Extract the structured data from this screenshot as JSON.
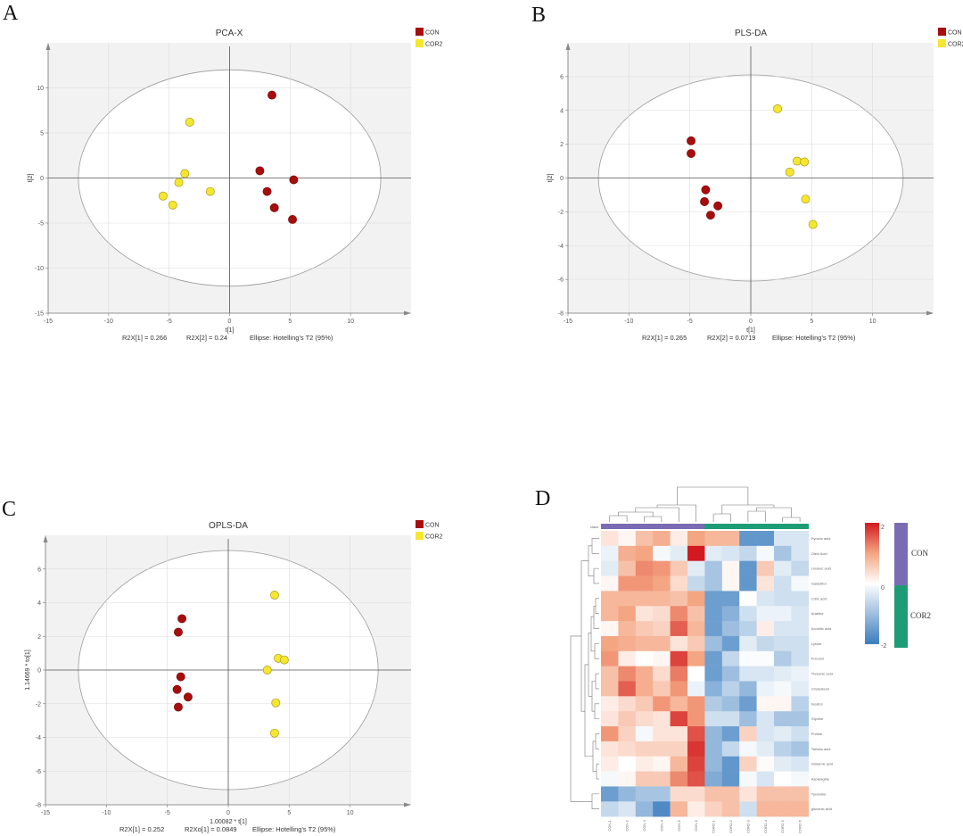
{
  "panel_labels": [
    "A",
    "B",
    "C",
    "D"
  ],
  "colors": {
    "CON": "#a80d0d",
    "COR2": "#f7e62f",
    "heat_low": "#3b7dbf",
    "heat_mid": "#ffffff",
    "heat_high": "#d2191f",
    "class_CON": "#7b6bb5",
    "class_COR2": "#1e9c75"
  },
  "chart_data": [
    {
      "type": "scatter",
      "title": "PCA-X",
      "xlabel": "t[1]",
      "ylabel": "t[2]",
      "xlim": [
        -15,
        15
      ],
      "ylim": [
        -15,
        15
      ],
      "xticks": [
        -15,
        -10,
        -5,
        0,
        5,
        10
      ],
      "yticks": [
        -15,
        -10,
        -5,
        0,
        5,
        10
      ],
      "grid": true,
      "legend": "top-right",
      "ellipse": {
        "label": "Ellipse: Hotelling's T2 (95%)",
        "rx": 12.5,
        "ry": 12
      },
      "stats": [
        "R2X[1] = 0.266",
        "R2X[2] = 0.24"
      ],
      "series": [
        {
          "name": "CON",
          "x": [
            3.5,
            2.5,
            5.3,
            3.1,
            3.7,
            5.2
          ],
          "y": [
            9.2,
            0.8,
            -0.2,
            -1.5,
            -3.3,
            -4.6
          ]
        },
        {
          "name": "COR2",
          "x": [
            -3.3,
            -3.7,
            -4.2,
            -1.6,
            -5.5,
            -4.7
          ],
          "y": [
            6.2,
            0.5,
            -0.5,
            -1.5,
            -2.0,
            -3.0
          ]
        }
      ]
    },
    {
      "type": "scatter",
      "title": "PLS-DA",
      "xlabel": "t[1]",
      "ylabel": "t[2]",
      "xlim": [
        -15,
        15
      ],
      "ylim": [
        -8,
        8
      ],
      "xticks": [
        -15,
        -10,
        -5,
        0,
        5,
        10
      ],
      "yticks": [
        -8,
        -6,
        -4,
        -2,
        0,
        2,
        4,
        6
      ],
      "grid": true,
      "legend": "top-right",
      "ellipse": {
        "label": "Ellipse: Hotelling's T2 (95%)",
        "rx": 12.5,
        "ry": 6.1
      },
      "stats": [
        "R2X[1] = 0.265",
        "R2X[2] = 0.0719"
      ],
      "series": [
        {
          "name": "CON",
          "x": [
            -4.9,
            -4.9,
            -3.7,
            -3.8,
            -2.7,
            -3.3
          ],
          "y": [
            2.2,
            1.45,
            -0.7,
            -1.4,
            -1.65,
            -2.2
          ]
        },
        {
          "name": "COR2",
          "x": [
            2.2,
            3.8,
            4.4,
            3.2,
            4.5,
            5.1
          ],
          "y": [
            4.1,
            1.0,
            0.95,
            0.35,
            -1.25,
            -2.75
          ]
        }
      ]
    },
    {
      "type": "scatter",
      "title": "OPLS-DA",
      "xlabel": "1.00082 * t[1]",
      "ylabel": "1.14669 * to[1]",
      "xlim": [
        -15,
        15
      ],
      "ylim": [
        -8,
        8
      ],
      "xticks": [
        -15,
        -10,
        -5,
        0,
        5,
        10
      ],
      "yticks": [
        -8,
        -6,
        -4,
        -2,
        0,
        2,
        4,
        6
      ],
      "grid": true,
      "legend": "top-right",
      "ellipse": {
        "label": "Ellipse: Hotelling's T2 (95%)",
        "rx": 12.3,
        "ry": 7.1
      },
      "stats": [
        "R2X[1] = 0.252",
        "R2Xo[1] = 0.0849"
      ],
      "series": [
        {
          "name": "CON",
          "x": [
            -3.8,
            -4.1,
            -3.9,
            -4.2,
            -3.3,
            -4.1
          ],
          "y": [
            3.05,
            2.25,
            -0.4,
            -1.15,
            -1.6,
            -2.2
          ]
        },
        {
          "name": "COR2",
          "x": [
            3.8,
            4.1,
            4.6,
            3.2,
            3.9,
            3.8
          ],
          "y": [
            4.45,
            0.7,
            0.6,
            0.0,
            -1.95,
            -3.75
          ]
        }
      ]
    },
    {
      "type": "heatmap",
      "class_label": "class",
      "scale": {
        "min": -2,
        "max": 2,
        "ticks": [
          "2",
          "0",
          "-2"
        ]
      },
      "classes": [
        "CON",
        "COR2"
      ],
      "columns": [
        "CON-1",
        "CON-2",
        "CON-3",
        "CON-4",
        "CON-5",
        "CON-6",
        "COR2-1",
        "COR2-2",
        "COR2-3",
        "COR2-4",
        "COR2-5",
        "COR2-6"
      ],
      "column_class": [
        "CON",
        "CON",
        "CON",
        "CON",
        "CON",
        "CON",
        "COR2",
        "COR2",
        "COR2",
        "COR2",
        "COR2",
        "COR2"
      ],
      "rows": [
        "Pyruvic acid",
        "Oleic Acid",
        "Linoleic acid",
        "Galactitol",
        "Citric acid",
        "Arabitol",
        "Aconitic acid",
        "Lysine",
        "Fucosol",
        "Threonic acid",
        "Cholesterol",
        "Inositol",
        "Glycine",
        "Proline",
        "Tartaric acid",
        "Glutamic acid",
        "Asparagine",
        "Tyramine",
        "gluconic acid"
      ],
      "values": [
        [
          0.3,
          0.1,
          0.7,
          0.9,
          0.2,
          1.0,
          0.8,
          0.8,
          -1.6,
          -1.6,
          -0.4,
          -0.4
        ],
        [
          -0.2,
          0.9,
          1.0,
          -0.1,
          -0.3,
          2.0,
          -0.3,
          -0.4,
          -0.6,
          -0.1,
          -0.9,
          -0.4
        ],
        [
          -0.3,
          0.7,
          1.2,
          1.1,
          0.6,
          -0.3,
          -0.9,
          0.1,
          -1.6,
          0.6,
          -0.3,
          -0.6
        ],
        [
          0.1,
          1.1,
          1.1,
          1.0,
          0.4,
          -0.6,
          -0.9,
          0.1,
          -1.6,
          0.3,
          -0.5,
          -0.1
        ],
        [
          0.8,
          0.8,
          0.8,
          0.8,
          0.7,
          1.0,
          -1.5,
          -1.5,
          0.0,
          -0.4,
          -0.5,
          -0.5
        ],
        [
          0.8,
          1.0,
          0.3,
          0.4,
          1.2,
          0.7,
          -1.5,
          -1.2,
          -0.5,
          -0.2,
          -0.2,
          -0.4
        ],
        [
          0.1,
          0.8,
          0.6,
          0.5,
          1.5,
          0.8,
          -1.5,
          -1.0,
          -0.7,
          0.2,
          -0.4,
          -0.4
        ],
        [
          1.0,
          0.9,
          0.8,
          0.8,
          0.3,
          0.6,
          -1.0,
          -1.5,
          -0.3,
          -0.6,
          -0.5,
          -0.5
        ],
        [
          1.1,
          0.2,
          0.0,
          0.1,
          1.7,
          1.0,
          -1.5,
          -0.6,
          -0.05,
          -0.05,
          -0.8,
          -0.5
        ],
        [
          0.7,
          1.2,
          0.9,
          0.4,
          1.3,
          0.0,
          -1.5,
          -1.0,
          -0.4,
          -0.4,
          -0.3,
          -0.2
        ],
        [
          0.7,
          1.5,
          0.9,
          0.6,
          1.1,
          -0.2,
          -1.2,
          -0.7,
          -1.1,
          -0.2,
          -0.1,
          -0.3
        ],
        [
          0.2,
          0.4,
          0.6,
          1.1,
          0.8,
          1.1,
          -0.8,
          -1.0,
          -1.5,
          0.1,
          0.1,
          -0.7
        ],
        [
          0.3,
          0.6,
          0.4,
          0.3,
          1.7,
          1.1,
          -0.5,
          -0.5,
          -1.0,
          -0.4,
          -0.9,
          -0.9
        ],
        [
          1.1,
          0.5,
          -0.1,
          0.3,
          0.3,
          1.6,
          -1.1,
          -1.5,
          0.5,
          -0.4,
          -0.3,
          -0.5
        ],
        [
          0.3,
          0.4,
          0.5,
          0.5,
          0.5,
          1.8,
          -1.1,
          -0.6,
          -0.1,
          -0.3,
          -0.7,
          -0.9
        ],
        [
          0.2,
          0.0,
          0.2,
          0.1,
          0.8,
          1.7,
          -1.1,
          -1.6,
          0.5,
          0.05,
          -0.3,
          -0.4
        ],
        [
          -0.1,
          0.1,
          0.6,
          0.6,
          1.2,
          1.6,
          -1.3,
          -1.6,
          -0.1,
          -0.4,
          0.0,
          -0.1
        ],
        [
          -1.5,
          -1.1,
          -0.9,
          -0.9,
          0.4,
          0.4,
          0.7,
          0.7,
          0.3,
          0.7,
          0.7,
          0.7
        ],
        [
          -0.6,
          -0.4,
          -1.1,
          -1.8,
          0.8,
          0.2,
          0.5,
          0.7,
          -0.5,
          0.8,
          0.8,
          0.8
        ]
      ]
    }
  ]
}
